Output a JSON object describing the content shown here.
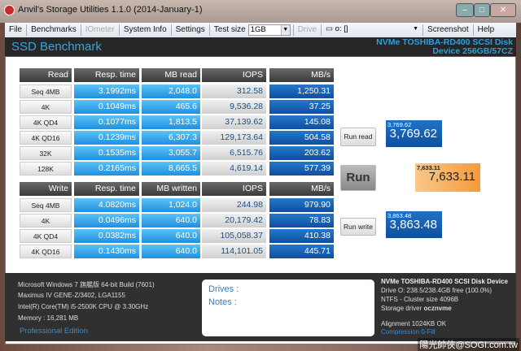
{
  "window": {
    "title": "Anvil's Storage Utilities 1.1.0 (2014-January-1)"
  },
  "menu": {
    "file": "File",
    "benchmarks": "Benchmarks",
    "iometer": "IOmeter",
    "system_info": "System Info",
    "settings": "Settings",
    "test_size_label": "Test size",
    "test_size": "1GB",
    "drive_label": "Drive",
    "drive": "o: []",
    "screenshot": "Screenshot",
    "help": "Help"
  },
  "header": {
    "title": "SSD Benchmark",
    "device_line1": "NVMe TOSHIBA-RD400 SCSI Disk",
    "device_line2": "Device 256GB/57CZ"
  },
  "read": {
    "headers": [
      "Read",
      "Resp. time",
      "MB read",
      "IOPS",
      "MB/s"
    ],
    "rows": [
      [
        "Seq 4MB",
        "3.1992ms",
        "2,048.0",
        "312.58",
        "1,250.31"
      ],
      [
        "4K",
        "0.1049ms",
        "465.6",
        "9,536.28",
        "37.25"
      ],
      [
        "4K QD4",
        "0.1077ms",
        "1,813.5",
        "37,139.62",
        "145.08"
      ],
      [
        "4K QD16",
        "0.1239ms",
        "6,307.3",
        "129,173.64",
        "504.58"
      ],
      [
        "32K",
        "0.1535ms",
        "3,055.7",
        "6,515.76",
        "203.62"
      ],
      [
        "128K",
        "0.2165ms",
        "8,665.5",
        "4,619.14",
        "577.39"
      ]
    ],
    "button": "Run read",
    "score_small": "3,769.62",
    "score": "3,769.62"
  },
  "write": {
    "headers": [
      "Write",
      "Resp. time",
      "MB written",
      "IOPS",
      "MB/s"
    ],
    "rows": [
      [
        "Seq 4MB",
        "4.0820ms",
        "1,024.0",
        "244.98",
        "979.90"
      ],
      [
        "4K",
        "0.0496ms",
        "640.0",
        "20,179.42",
        "78.83"
      ],
      [
        "4K QD4",
        "0.0382ms",
        "640.0",
        "105,058.37",
        "410.38"
      ],
      [
        "4K QD16",
        "0.1430ms",
        "640.0",
        "114,101.05",
        "445.71"
      ]
    ],
    "button": "Run write",
    "score_small": "3,863.48",
    "score": "3,863.48"
  },
  "total": {
    "button": "Run",
    "score_small": "7,633.11",
    "score": "7,633.11"
  },
  "system": {
    "os": "Microsoft Windows 7 旗艦版  64-bit Build (7601)",
    "board": "Maximus IV GENE-Z/3402, LGA1155",
    "cpu": "Intel(R) Core(TM) i5-2500K CPU @ 3.30GHz",
    "memory": "Memory : 16,281 MB",
    "edition": "Professional Edition"
  },
  "notes": {
    "drives_label": "Drives :",
    "notes_label": "Notes :"
  },
  "drive_info": {
    "name": "NVMe TOSHIBA-RD400 SCSI Disk Device",
    "free": "Drive O: 238.5/238.4GB free (100.0%)",
    "fs": "NTFS - Cluster size 4096B",
    "driver_label": "Storage driver",
    "driver": "ocznvme",
    "alignment": "Alignment 1024KB OK",
    "compression": "Compression 0-Fill"
  },
  "watermark": "陽光帥俠@SOGI.com.tw"
}
